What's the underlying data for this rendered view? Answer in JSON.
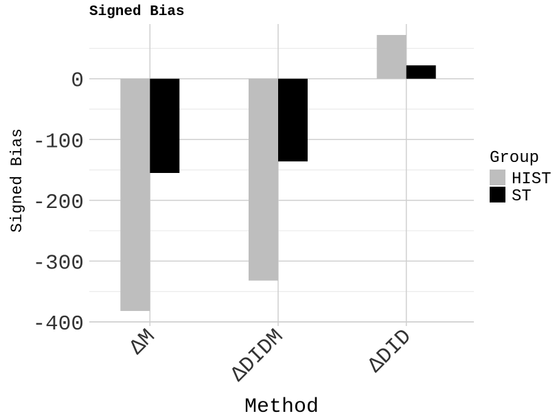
{
  "chart_data": {
    "type": "bar",
    "title": "Signed Bias",
    "xlabel": "Method",
    "ylabel": "Signed Bias",
    "categories": [
      "ΔM",
      "ΔDIDM",
      "ΔDID"
    ],
    "series": [
      {
        "name": "HIST",
        "color": "#bebebe",
        "values": [
          -382,
          -332,
          72
        ]
      },
      {
        "name": "ST",
        "color": "#000000",
        "values": [
          -155,
          -136,
          22
        ]
      }
    ],
    "yticks": [
      0,
      -100,
      -200,
      -300,
      -400
    ],
    "ytick_labels": [
      "0",
      "-100",
      "-200",
      "-300",
      "-400"
    ],
    "ylim": [
      -400,
      90
    ],
    "grid": true,
    "legend": {
      "title": "Group",
      "position": "right"
    }
  }
}
